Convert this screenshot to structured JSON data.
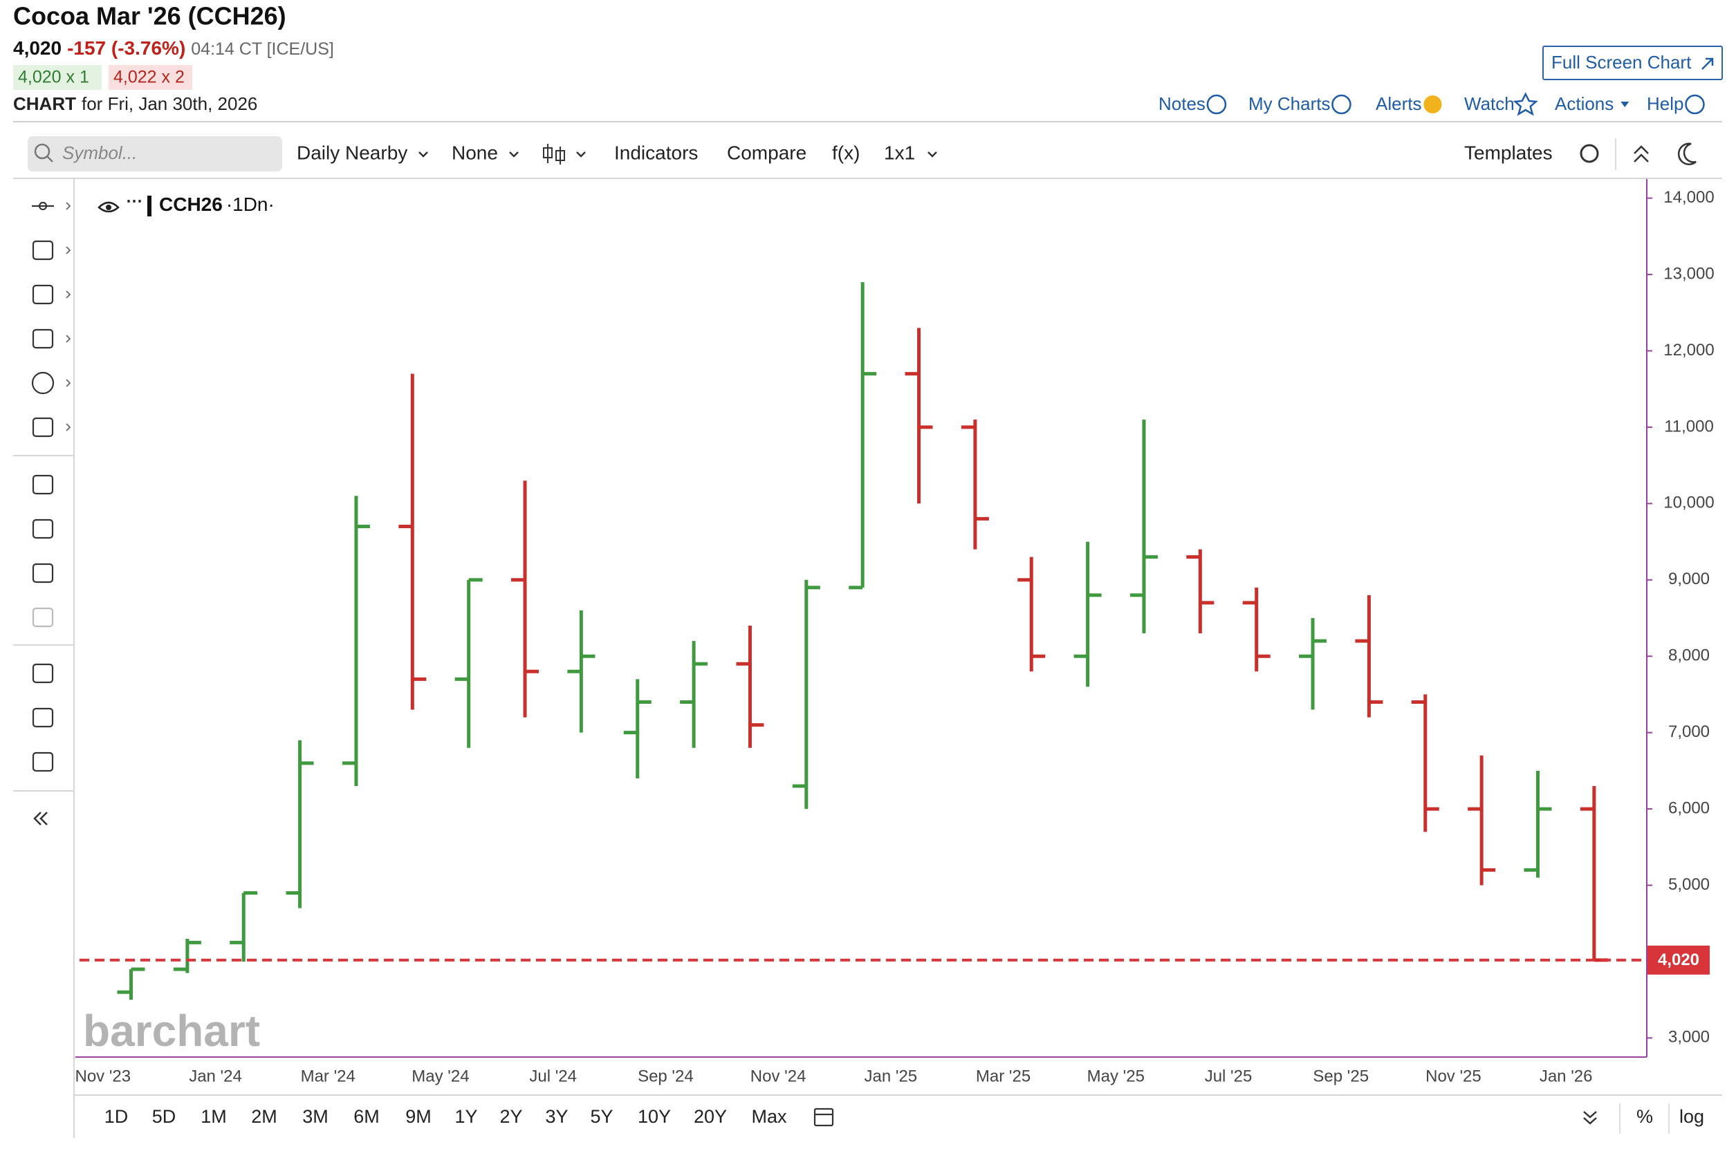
{
  "header": {
    "title": "Cocoa Mar '26 (CCH26)",
    "last": "4,020",
    "change": "-157 (-3.76%)",
    "time": "04:14 CT [ICE/US]",
    "bid": "4,020 x 1",
    "ask": "4,022 x 2",
    "chart_label": "CHART",
    "chart_date": "for Fri, Jan 30th, 2026",
    "full_screen": "Full Screen Chart"
  },
  "links": [
    "Notes",
    "My Charts",
    "Alerts",
    "Watch",
    "Actions",
    "Help"
  ],
  "toolbar": {
    "search_placeholder": "Symbol...",
    "items": [
      "Daily Nearby",
      "None",
      "Indicators",
      "Compare",
      "f(x)",
      "1x1"
    ],
    "templates": "Templates"
  },
  "chart_data": {
    "type": "ohlc",
    "legend": "CCH26",
    "legend_suffix": "·1Dn·",
    "x": [
      "Nov '23",
      null,
      "Jan '24",
      null,
      "Mar '24",
      null,
      "May '24",
      null,
      "Jul '24",
      null,
      "Sep '24",
      null,
      "Nov '24",
      null,
      "Jan '25",
      null,
      "Mar '25",
      null,
      "May '25",
      null,
      "Jul '25",
      null,
      "Sep '25",
      null,
      "Nov '25",
      null,
      "Jan '26"
    ],
    "open": [
      3600,
      3900,
      4250,
      4900,
      6600,
      9700,
      7700,
      9000,
      7800,
      7000,
      7400,
      7900,
      6300,
      8900,
      11700,
      11000,
      9000,
      8000,
      8800,
      9300,
      8700,
      8000,
      8200,
      7400,
      6000,
      5200,
      6000
    ],
    "high": [
      3900,
      4300,
      4900,
      6900,
      10100,
      11700,
      9000,
      10300,
      8600,
      7700,
      8200,
      8400,
      9000,
      12900,
      12300,
      11100,
      9300,
      9500,
      11100,
      9400,
      8900,
      8500,
      8800,
      7500,
      6700,
      6500,
      6300
    ],
    "low": [
      3500,
      3850,
      4000,
      4700,
      6300,
      7300,
      6800,
      7200,
      7000,
      6400,
      6800,
      6800,
      6000,
      8900,
      10000,
      9400,
      7800,
      7600,
      8300,
      8300,
      7800,
      7300,
      7200,
      5700,
      5000,
      5100,
      4020
    ],
    "close": [
      3900,
      4250,
      4900,
      6600,
      9700,
      7700,
      9000,
      7800,
      8000,
      7400,
      7900,
      7100,
      8900,
      11700,
      11000,
      9800,
      8000,
      8800,
      9300,
      8700,
      8000,
      8200,
      7400,
      6000,
      5200,
      6000,
      4020
    ],
    "ylim": [
      2750,
      14250
    ],
    "yticks": [
      {
        "value": 3000,
        "label": "3,000"
      },
      {
        "value": 5000,
        "label": "5,000"
      },
      {
        "value": 6000,
        "label": "6,000"
      },
      {
        "value": 7000,
        "label": "7,000"
      },
      {
        "value": 8000,
        "label": "8,000"
      },
      {
        "value": 9000,
        "label": "9,000"
      },
      {
        "value": 10000,
        "label": "10,000"
      },
      {
        "value": 11000,
        "label": "11,000"
      },
      {
        "value": 12000,
        "label": "12,000"
      },
      {
        "value": 13000,
        "label": "13,000"
      },
      {
        "value": 14000,
        "label": "14,000"
      }
    ],
    "last_price": {
      "value": 4020,
      "label": "4,020"
    },
    "colors": {
      "up": "#3f9a3f",
      "down": "#c9302c",
      "last": "#d8353a"
    },
    "watermark": "barchart"
  },
  "ranges": [
    "1D",
    "5D",
    "1M",
    "2M",
    "3M",
    "6M",
    "9M",
    "1Y",
    "2Y",
    "3Y",
    "5Y",
    "10Y",
    "20Y",
    "Max"
  ],
  "scale_options": [
    "%",
    "log"
  ]
}
